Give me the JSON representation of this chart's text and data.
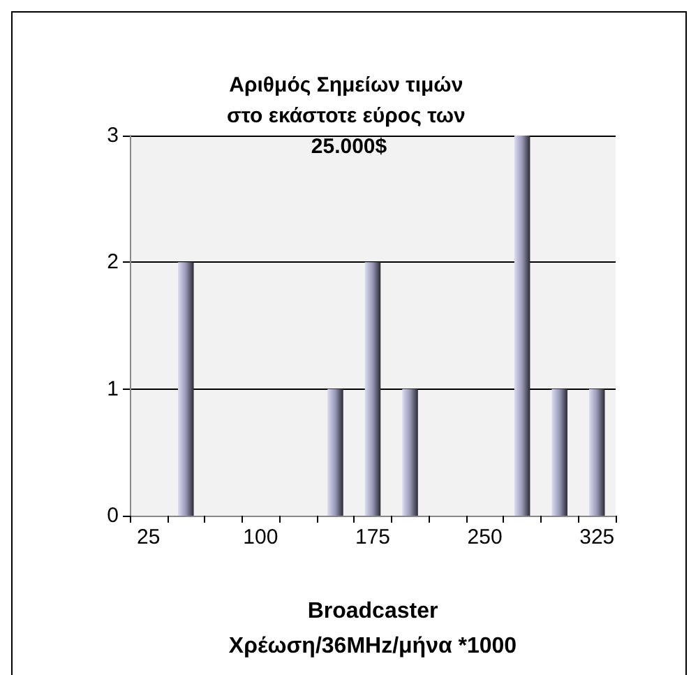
{
  "chart_data": {
    "type": "bar",
    "title": "Αριθμός Σημείων τιμών στο εκάστοτε εύρος των 25.000$",
    "xlabel": "Broadcaster\nΧρέωση/36MHz/μήνα *1000",
    "categories": [
      "25",
      null,
      null,
      "100",
      null,
      null,
      "175",
      null,
      null,
      "250",
      null,
      null,
      "325"
    ],
    "values": [
      0,
      2,
      0,
      0,
      0,
      1,
      2,
      1,
      0,
      0,
      3,
      1,
      1
    ],
    "color": "#9898b4",
    "ylim": [
      0,
      3
    ],
    "yticks": [
      0,
      1,
      2,
      3
    ],
    "grid": "y"
  }
}
